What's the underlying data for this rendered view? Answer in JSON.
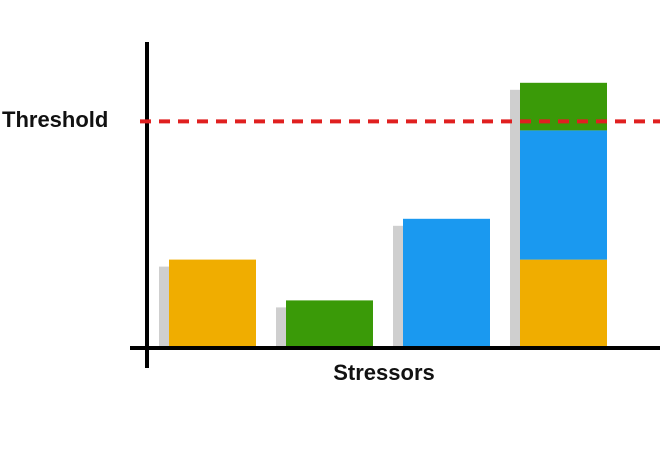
{
  "chart_data": {
    "type": "bar",
    "stacked": true,
    "categories": [
      null,
      null,
      null,
      null
    ],
    "series": [
      {
        "color": "#f0ad00",
        "values": [
          39,
          null,
          null,
          39
        ]
      },
      {
        "color": "#1a99f0",
        "values": [
          null,
          null,
          57,
          57
        ]
      },
      {
        "color": "#3a9a08",
        "values": [
          null,
          21,
          null,
          21
        ]
      }
    ],
    "ylim": [
      0,
      135
    ],
    "threshold": {
      "label": "Threshold",
      "value": 100,
      "color": "#e02020"
    },
    "xlabel": "Stressors"
  }
}
